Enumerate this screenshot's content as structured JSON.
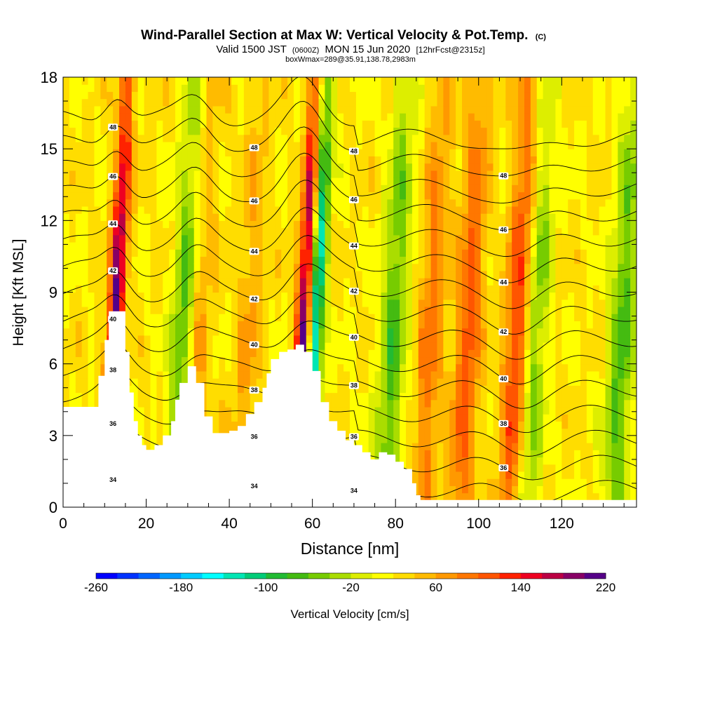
{
  "header": {
    "title": "Wind-Parallel Section at Max W: Vertical Velocity & Pot.Temp.",
    "title_mark": "(C)",
    "valid_prefix": "Valid 1500 JST",
    "valid_utc": "(0600Z)",
    "valid_date": "MON 15 Jun 2020",
    "forecast": "[12hrFcst@2315z]",
    "box_info": "boxWmax=289@35.91,138.78,2983m"
  },
  "chart_data": {
    "type": "heatmap",
    "xlabel": "Distance [nm]",
    "ylabel": "Height [Kft MSL]",
    "xlim": [
      0,
      138
    ],
    "ylim": [
      0,
      18
    ],
    "x_ticks": [
      0,
      20,
      40,
      60,
      80,
      100,
      120
    ],
    "y_ticks": [
      0,
      3,
      6,
      9,
      12,
      15,
      18
    ],
    "grid": false,
    "colorbar": {
      "label": "Vertical Velocity [cm/s]",
      "min": -260,
      "max": 220,
      "step": 20,
      "tick_labels": [
        "-260",
        "-180",
        "-100",
        "-20",
        "60",
        "140",
        "220"
      ],
      "colors": [
        "#0000ff",
        "#0033ff",
        "#0066ff",
        "#0099ff",
        "#00ccff",
        "#00ffff",
        "#00e6b4",
        "#00cc78",
        "#22bb33",
        "#44bb11",
        "#77cc00",
        "#aadd00",
        "#ddee00",
        "#ffff00",
        "#ffdd00",
        "#ffbb00",
        "#ff9900",
        "#ff7700",
        "#ff5500",
        "#ff2200",
        "#ee0022",
        "#bb0044",
        "#880066",
        "#550088"
      ]
    },
    "updraft_cores": [
      {
        "x": 13,
        "w": 200
      },
      {
        "x": 32,
        "w": 110
      },
      {
        "x": 58.5,
        "w": 220
      },
      {
        "x": 110,
        "w": 130
      },
      {
        "x": 98,
        "w": 110
      },
      {
        "x": 89,
        "w": 90
      },
      {
        "x": 45,
        "w": 60
      }
    ],
    "downdraft_cores": [
      {
        "x": 61,
        "w": -170
      },
      {
        "x": 30,
        "w": -110
      },
      {
        "x": 80,
        "w": -70
      },
      {
        "x": 114,
        "w": -60
      },
      {
        "x": 135,
        "w": -70
      }
    ],
    "terrain": {
      "distance_nm": [
        0,
        7.5,
        8.5,
        10,
        11,
        13,
        15,
        16,
        17,
        18,
        19,
        20,
        22,
        24,
        26,
        27,
        28,
        30,
        32,
        34,
        36,
        38,
        40,
        42,
        44,
        46,
        48,
        49,
        50,
        52,
        54,
        56,
        58,
        60,
        62,
        64,
        66,
        68,
        70,
        72,
        74,
        76,
        78,
        80,
        82,
        84,
        85,
        86,
        90,
        100,
        110,
        120,
        130,
        138
      ],
      "height_kft": [
        4.2,
        4.2,
        5.5,
        7.0,
        8.2,
        8.2,
        6.5,
        4.8,
        3.6,
        3.0,
        2.6,
        2.4,
        2.6,
        3.0,
        3.6,
        4.5,
        5.2,
        5.9,
        5.2,
        3.8,
        3.1,
        3.1,
        3.2,
        3.4,
        3.9,
        4.4,
        5.0,
        5.6,
        6.2,
        6.5,
        6.6,
        6.8,
        6.5,
        5.7,
        4.4,
        3.6,
        3.2,
        2.8,
        2.6,
        2.3,
        2.0,
        2.3,
        2.2,
        1.9,
        1.6,
        1.0,
        0.5,
        0.3,
        0.3,
        0.3,
        0.3,
        0.3,
        0.3,
        0.3
      ]
    },
    "theta_contours": {
      "levels": [
        34,
        35,
        36,
        37,
        38,
        39,
        40,
        41,
        42,
        43,
        44,
        45,
        46,
        47,
        48,
        49
      ],
      "labeled_levels": [
        34,
        36,
        38,
        40,
        42,
        44,
        46,
        48
      ],
      "label_text": [
        "34",
        "36",
        "38",
        "40",
        "42",
        "44",
        "46",
        "48"
      ]
    }
  }
}
